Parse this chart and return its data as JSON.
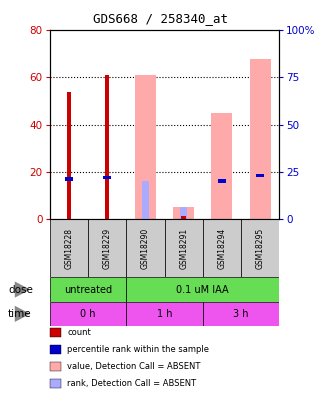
{
  "title": "GDS668 / 258340_at",
  "samples": [
    "GSM18228",
    "GSM18229",
    "GSM18290",
    "GSM18291",
    "GSM18294",
    "GSM18295"
  ],
  "count_values": [
    54,
    61,
    0,
    1,
    0,
    0
  ],
  "rank_values": [
    21,
    22,
    0,
    0,
    20,
    23
  ],
  "absent_value_bars": [
    0,
    0,
    61,
    5,
    45,
    68
  ],
  "absent_rank_bars": [
    0,
    0,
    20,
    6,
    0,
    0
  ],
  "ylim_left": [
    0,
    80
  ],
  "ylim_right": [
    0,
    100
  ],
  "yticks_left": [
    0,
    20,
    40,
    60,
    80
  ],
  "yticks_right": [
    0,
    25,
    50,
    75,
    100
  ],
  "yticklabels_right": [
    "0",
    "25",
    "50",
    "75",
    "100%"
  ],
  "count_color": "#cc0000",
  "rank_color": "#0000cc",
  "absent_value_color": "#ffaaaa",
  "absent_rank_color": "#aaaaff",
  "dose_labels": [
    [
      "untreated",
      0,
      2
    ],
    [
      "0.1 uM IAA",
      2,
      6
    ]
  ],
  "time_labels": [
    [
      "0 h",
      0,
      2
    ],
    [
      "1 h",
      2,
      4
    ],
    [
      "3 h",
      4,
      6
    ]
  ],
  "dose_color": "#66dd55",
  "time_color": "#ee55ee",
  "label_color_left": "#cc0000",
  "label_color_right": "#0000cc",
  "sample_bg_color": "#cccccc",
  "legend_items": [
    {
      "color": "#cc0000",
      "label": "count"
    },
    {
      "color": "#0000cc",
      "label": "percentile rank within the sample"
    },
    {
      "color": "#ffaaaa",
      "label": "value, Detection Call = ABSENT"
    },
    {
      "color": "#aaaaff",
      "label": "rank, Detection Call = ABSENT"
    }
  ]
}
